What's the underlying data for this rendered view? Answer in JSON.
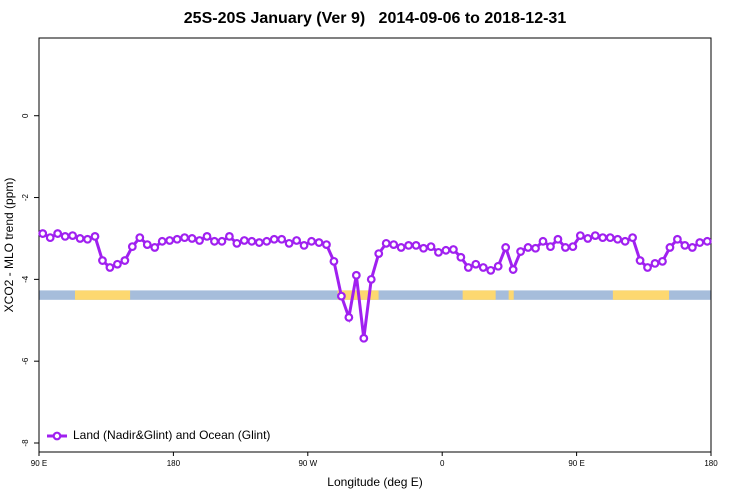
{
  "chart_data": {
    "type": "line",
    "title": "25S-20S January (Ver 9)   2014-09-06 to 2018-12-31",
    "x_label": "Longitude (deg E)",
    "y_label": "XCO2 - MLO trend (ppm)",
    "xlim": [
      90,
      540
    ],
    "ylim": [
      -8.22,
      1.9
    ],
    "xticks": [
      {
        "value": 90,
        "label": "90 E"
      },
      180,
      {
        "value": 270,
        "label": "90 W"
      },
      {
        "value": 360,
        "label": "0"
      },
      {
        "value": 450,
        "label": "90 E"
      },
      {
        "value": 540,
        "label": "180"
      }
    ],
    "yticks": [
      0,
      -2,
      -4,
      -6,
      -8
    ],
    "x": [
      92.5,
      97.5,
      102.5,
      107.5,
      112.5,
      117.5,
      122.5,
      127.5,
      132.5,
      137.5,
      142.5,
      147.5,
      152.5,
      157.5,
      162.5,
      167.5,
      172.5,
      177.5,
      182.5,
      187.5,
      192.5,
      197.5,
      202.5,
      207.5,
      212.5,
      217.5,
      222.5,
      227.5,
      232.5,
      237.5,
      242.5,
      247.5,
      252.5,
      257.5,
      262.5,
      267.5,
      272.5,
      277.5,
      282.5,
      287.5,
      292.5,
      297.5,
      302.5,
      307.5,
      312.5,
      317.5,
      322.5,
      327.5,
      332.5,
      337.5,
      342.5,
      347.5,
      352.5,
      357.5,
      362.5,
      367.5,
      372.5,
      377.5,
      382.5,
      387.5,
      392.5,
      397.5,
      402.5,
      407.5,
      412.5,
      417.5,
      422.5,
      427.5,
      432.5,
      437.5,
      442.5,
      447.5,
      452.5,
      457.5,
      462.5,
      467.5,
      472.5,
      477.5,
      482.5,
      487.5,
      492.5,
      497.5,
      502.5,
      507.5,
      512.5,
      517.5,
      522.5,
      527.5,
      532.5,
      537.5
    ],
    "series": [
      {
        "name": "Land (Nadir&Glint) and Ocean (Glint)",
        "color": "#a020f0",
        "values": [
          -2.88,
          -2.98,
          -2.88,
          -2.95,
          -2.93,
          -3.0,
          -3.02,
          -2.95,
          -3.54,
          -3.71,
          -3.63,
          -3.54,
          -3.2,
          -2.98,
          -3.15,
          -3.22,
          -3.07,
          -3.05,
          -3.02,
          -2.98,
          -3.0,
          -3.05,
          -2.95,
          -3.07,
          -3.07,
          -2.95,
          -3.12,
          -3.05,
          -3.07,
          -3.1,
          -3.07,
          -3.02,
          -3.02,
          -3.12,
          -3.05,
          -3.17,
          -3.07,
          -3.1,
          -3.15,
          -3.56,
          -4.41,
          -4.93,
          -3.9,
          -5.44,
          -4.0,
          -3.37,
          -3.12,
          -3.15,
          -3.22,
          -3.17,
          -3.17,
          -3.24,
          -3.2,
          -3.34,
          -3.29,
          -3.27,
          -3.46,
          -3.71,
          -3.63,
          -3.71,
          -3.78,
          -3.68,
          -3.22,
          -3.76,
          -3.32,
          -3.22,
          -3.24,
          -3.07,
          -3.2,
          -3.02,
          -3.22,
          -3.2,
          -2.93,
          -3.0,
          -2.93,
          -2.98,
          -2.98,
          -3.02,
          -3.07,
          -2.98,
          -3.54,
          -3.71,
          -3.61,
          -3.56,
          -3.22,
          -3.02,
          -3.17,
          -3.22,
          -3.1,
          -3.07
        ]
      }
    ],
    "surface_band": {
      "ylim": [
        -4.5,
        -4.27
      ],
      "ocean_color": "#a6bddb",
      "land_color": "#fdd870",
      "land_ranges": [
        [
          114.1,
          151.0
        ],
        [
          289.9,
          317.4
        ],
        [
          373.7,
          395.8
        ],
        [
          404.5,
          407.9
        ],
        [
          474.3,
          511.9
        ]
      ]
    },
    "legend": "bottom-left"
  }
}
